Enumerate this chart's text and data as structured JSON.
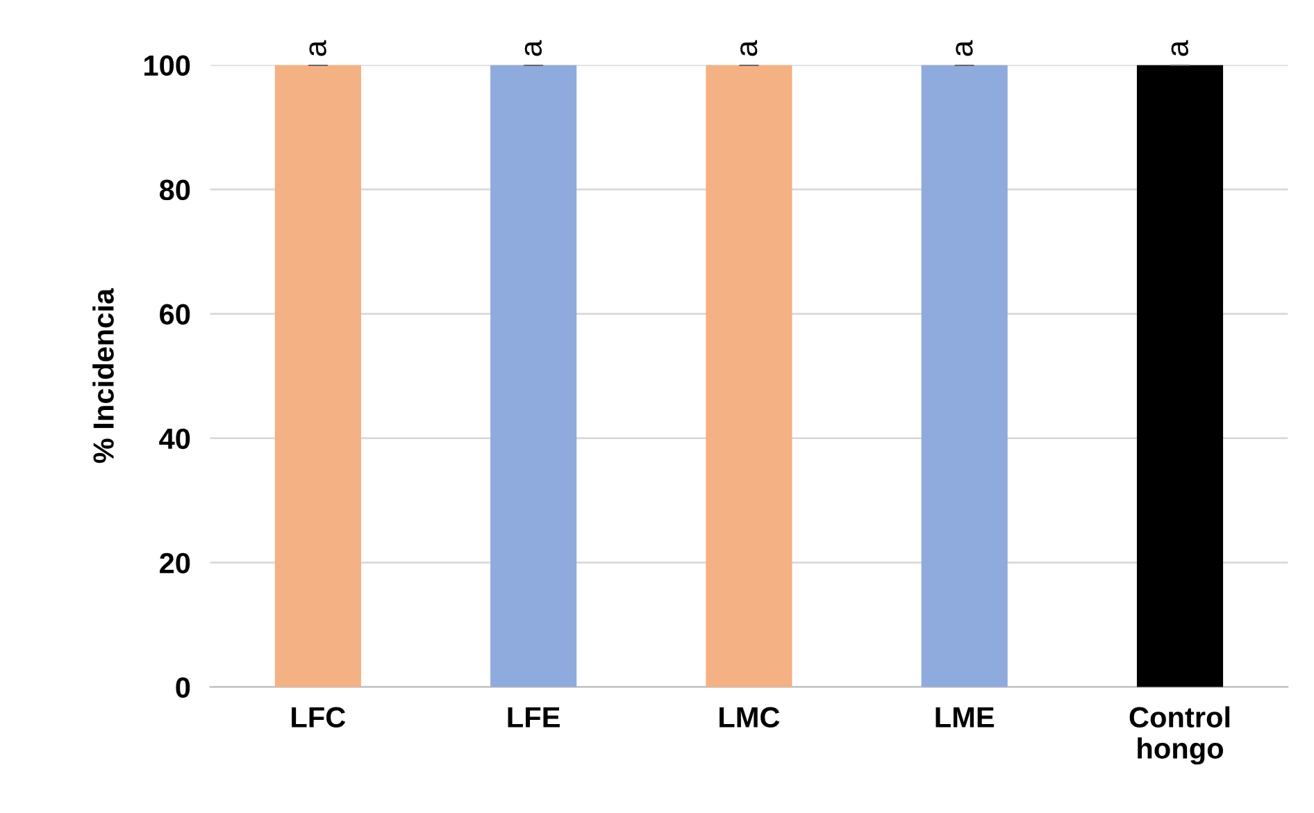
{
  "chart_data": {
    "type": "bar",
    "ylabel": "% Incidencia",
    "categories": [
      "LFC",
      "LFE",
      "LMC",
      "LME",
      "Control\nhongo"
    ],
    "values": [
      100,
      100,
      100,
      100,
      100
    ],
    "errors": [
      0,
      0,
      0,
      0,
      0
    ],
    "colors": [
      "#f4b183",
      "#8faadc",
      "#f4b183",
      "#8faadc",
      "#000000"
    ],
    "ylim": [
      0,
      100
    ],
    "yticks": [
      0,
      20,
      40,
      60,
      80,
      100
    ],
    "grid": "y",
    "legend": false,
    "annotations": [
      {
        "text": "a",
        "x": "LFC",
        "y": 100
      },
      {
        "text": "a",
        "x": "LFE",
        "y": 100
      },
      {
        "text": "a",
        "x": "LMC",
        "y": 100
      },
      {
        "text": "a",
        "x": "LME",
        "y": 100
      },
      {
        "text": "a",
        "x": "Control\nhongo",
        "y": 100
      }
    ]
  }
}
